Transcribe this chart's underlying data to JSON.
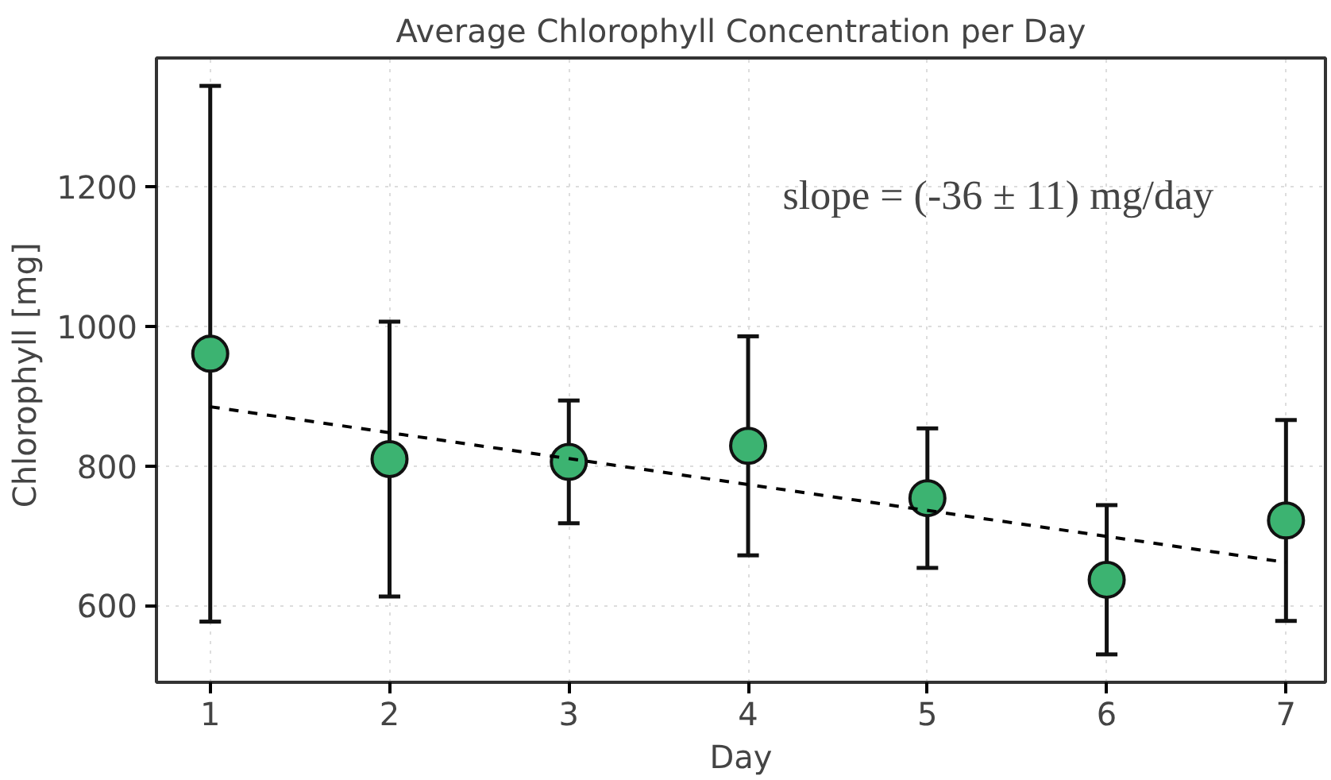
{
  "chart_data": {
    "type": "scatter",
    "title": "Average Chlorophyll Concentration per Day",
    "xlabel": "Day",
    "ylabel": "Chlorophyll  [mg]",
    "x": [
      1,
      2,
      3,
      4,
      5,
      6,
      7
    ],
    "series": [
      {
        "color": "#3cb371",
        "values": [
          961,
          810,
          806,
          829,
          754,
          637,
          722
        ],
        "errors": [
          384,
          197,
          88,
          157,
          100,
          107,
          144
        ],
        "marker": "circle"
      },
      {
        "type": "line",
        "color": "#000000",
        "x": [
          1,
          7
        ],
        "values": [
          885,
          662
        ],
        "line_style": "dashed",
        "marker": "none"
      }
    ],
    "annotations": [
      {
        "text": "slope = (-36 ± 11) mg/day"
      }
    ],
    "xlim": [
      0.7,
      7.22
    ],
    "ylim": [
      490,
      1385
    ],
    "xticks": [
      1,
      2,
      3,
      4,
      5,
      6,
      7
    ],
    "yticks": [
      600,
      800,
      1000,
      1200
    ],
    "grid": true
  }
}
